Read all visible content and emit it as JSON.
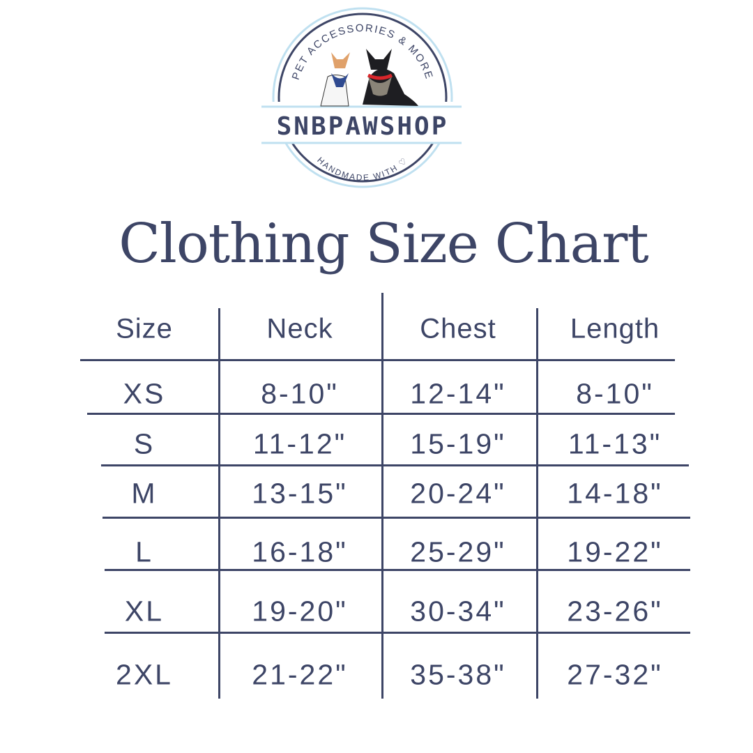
{
  "logo": {
    "brand": "SNBPAWSHOP",
    "top_text": "PET ACCESSORIES & MORE",
    "bottom_text": "HANDMADE WITH ♡",
    "colors": {
      "navy": "#3d4566",
      "light_blue": "#bfe0f0"
    }
  },
  "title": "Clothing Size Chart",
  "table": {
    "headers": [
      "Size",
      "Neck",
      "Chest",
      "Length"
    ],
    "rows": [
      [
        "XS",
        "8-10\"",
        "12-14\"",
        "8-10\""
      ],
      [
        "S",
        "11-12\"",
        "15-19\"",
        "11-13\""
      ],
      [
        "M",
        "13-15\"",
        "20-24\"",
        "14-18\""
      ],
      [
        "L",
        "16-18\"",
        "25-29\"",
        "19-22\""
      ],
      [
        "XL",
        "19-20\"",
        "30-34\"",
        "23-26\""
      ],
      [
        "2XL",
        "21-22\"",
        "35-38\"",
        "27-32\""
      ]
    ]
  },
  "colors": {
    "text": "#3d4566"
  }
}
